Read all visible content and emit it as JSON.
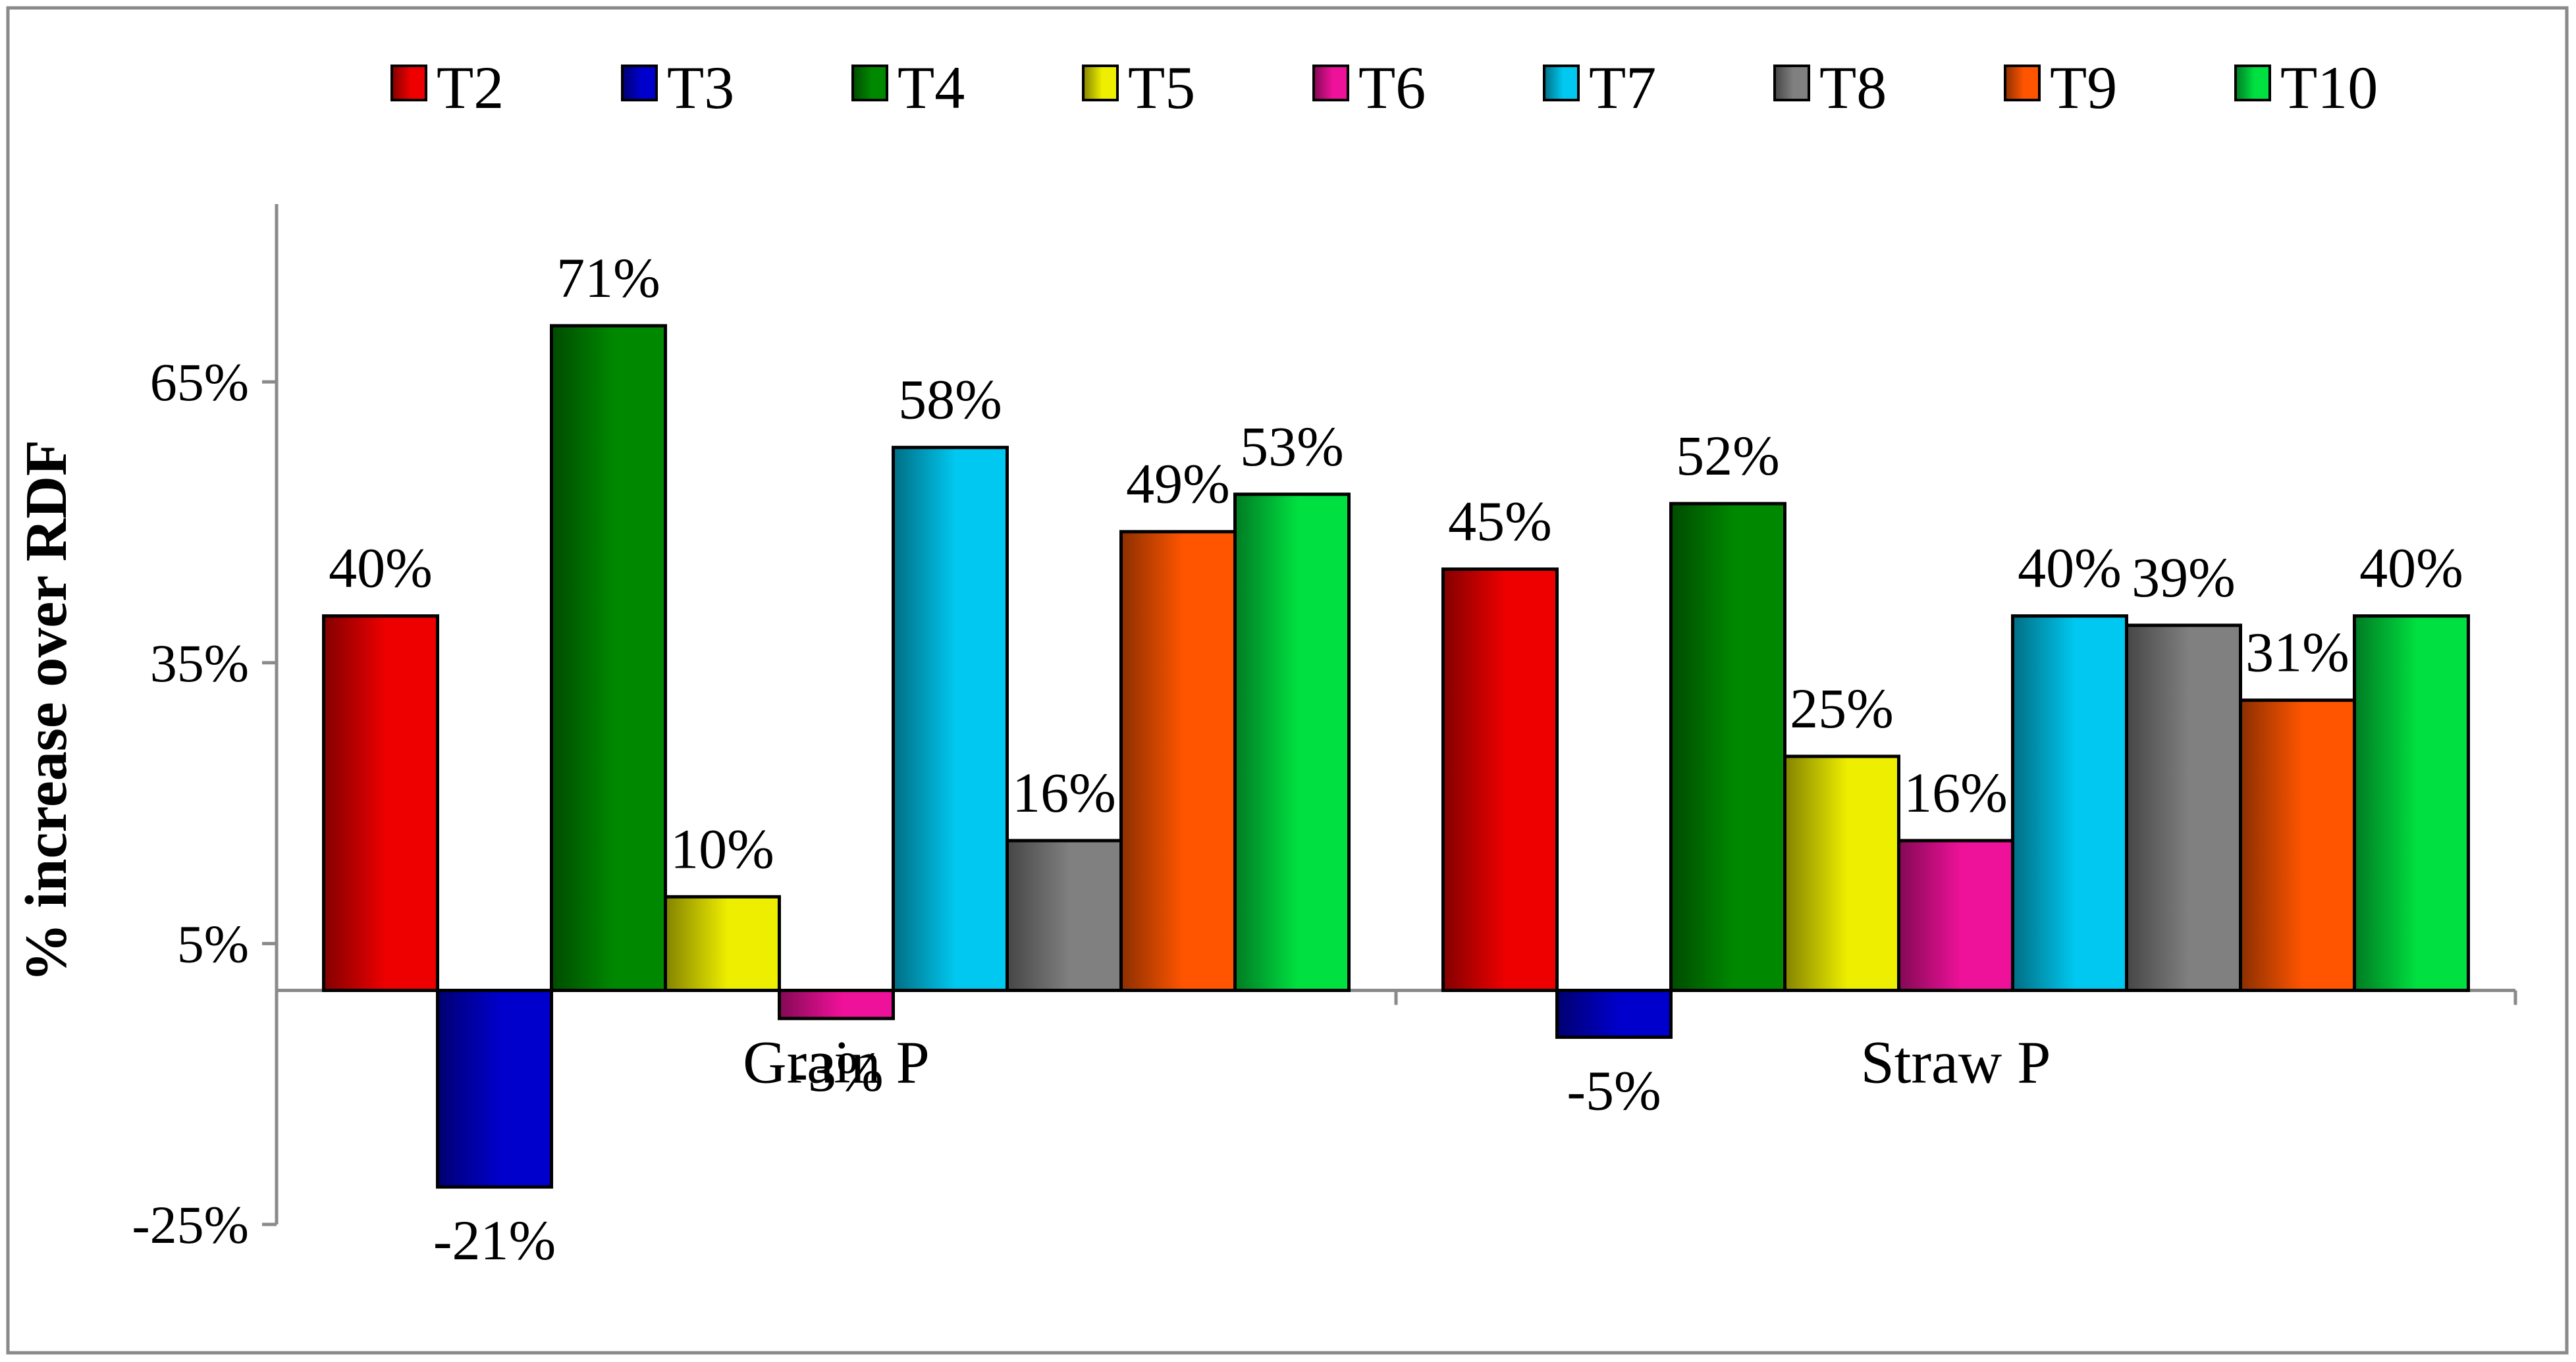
{
  "chart_data": {
    "type": "bar",
    "title": "",
    "xlabel": "",
    "ylabel": "% increase over RDF",
    "categories": [
      "Grain P",
      "Straw P"
    ],
    "ylim": [
      -25,
      84
    ],
    "yticks": [
      -25,
      5,
      35,
      65
    ],
    "ytick_labels": [
      "-25%",
      "5%",
      "35%",
      "65%"
    ],
    "grid": false,
    "legend_position": "top",
    "series": [
      {
        "name": "T2",
        "color": "#ee0000",
        "values": [
          40,
          45
        ],
        "labels": [
          "40%",
          "45%"
        ]
      },
      {
        "name": "T3",
        "color": "#0000cc",
        "values": [
          -21,
          -5
        ],
        "labels": [
          "-21%",
          "-5%"
        ]
      },
      {
        "name": "T4",
        "color": "#008800",
        "values": [
          71,
          52
        ],
        "labels": [
          "71%",
          "52%"
        ]
      },
      {
        "name": "T5",
        "color": "#eeee00",
        "values": [
          10,
          25
        ],
        "labels": [
          "10%",
          "25%"
        ]
      },
      {
        "name": "T6",
        "color": "#ee1199",
        "values": [
          -3,
          16
        ],
        "labels": [
          "-3%",
          "16%"
        ]
      },
      {
        "name": "T7",
        "color": "#00c8f0",
        "values": [
          58,
          40
        ],
        "labels": [
          "58%",
          "40%"
        ]
      },
      {
        "name": "T8",
        "color": "#808080",
        "values": [
          16,
          39
        ],
        "labels": [
          "16%",
          "39%"
        ]
      },
      {
        "name": "T9",
        "color": "#ff5500",
        "values": [
          49,
          31
        ],
        "labels": [
          "49%",
          "31%"
        ]
      },
      {
        "name": "T10",
        "color": "#00e040",
        "values": [
          53,
          40
        ],
        "labels": [
          "53%",
          "40%"
        ]
      }
    ]
  }
}
